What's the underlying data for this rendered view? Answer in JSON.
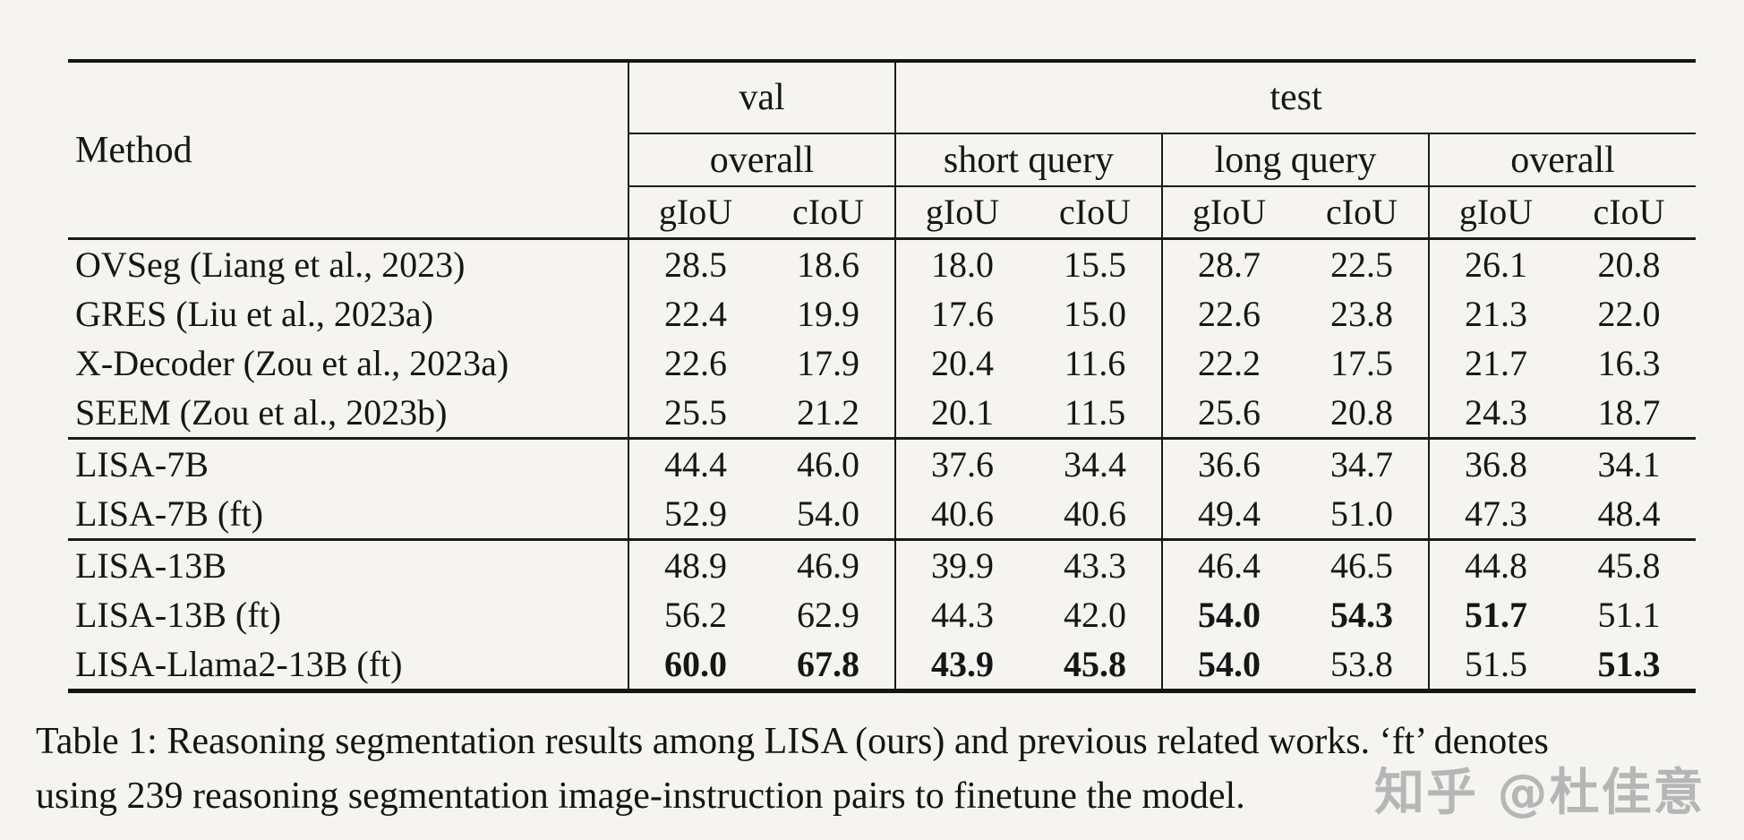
{
  "page": {
    "background": "#f5f4f1",
    "text_color": "#161616",
    "rule_color": "#1a1a1a"
  },
  "table": {
    "method_header": "Method",
    "top_groups": [
      {
        "label": "val"
      },
      {
        "label": "test"
      }
    ],
    "sub_groups": [
      "overall",
      "short query",
      "long query",
      "overall"
    ],
    "metric_headers": [
      "gIoU",
      "cIoU",
      "gIoU",
      "cIoU",
      "gIoU",
      "cIoU",
      "gIoU",
      "cIoU"
    ],
    "groups": [
      {
        "rows": [
          {
            "method": "OVSeg (Liang et al., 2023)",
            "values": [
              "28.5",
              "18.6",
              "18.0",
              "15.5",
              "28.7",
              "22.5",
              "26.1",
              "20.8"
            ],
            "bold": []
          },
          {
            "method": "GRES (Liu et al., 2023a)",
            "values": [
              "22.4",
              "19.9",
              "17.6",
              "15.0",
              "22.6",
              "23.8",
              "21.3",
              "22.0"
            ],
            "bold": []
          },
          {
            "method": "X-Decoder (Zou et al., 2023a)",
            "values": [
              "22.6",
              "17.9",
              "20.4",
              "11.6",
              "22.2",
              "17.5",
              "21.7",
              "16.3"
            ],
            "bold": []
          },
          {
            "method": "SEEM (Zou et al., 2023b)",
            "values": [
              "25.5",
              "21.2",
              "20.1",
              "11.5",
              "25.6",
              "20.8",
              "24.3",
              "18.7"
            ],
            "bold": []
          }
        ]
      },
      {
        "rows": [
          {
            "method": "LISA-7B",
            "values": [
              "44.4",
              "46.0",
              "37.6",
              "34.4",
              "36.6",
              "34.7",
              "36.8",
              "34.1"
            ],
            "bold": []
          },
          {
            "method": "LISA-7B (ft)",
            "values": [
              "52.9",
              "54.0",
              "40.6",
              "40.6",
              "49.4",
              "51.0",
              "47.3",
              "48.4"
            ],
            "bold": []
          }
        ]
      },
      {
        "rows": [
          {
            "method": "LISA-13B",
            "values": [
              "48.9",
              "46.9",
              "39.9",
              "43.3",
              "46.4",
              "46.5",
              "44.8",
              "45.8"
            ],
            "bold": []
          },
          {
            "method": "LISA-13B (ft)",
            "values": [
              "56.2",
              "62.9",
              "44.3",
              "42.0",
              "54.0",
              "54.3",
              "51.7",
              "51.1"
            ],
            "bold": [
              4,
              5,
              6
            ]
          },
          {
            "method": "LISA-Llama2-13B (ft)",
            "values": [
              "60.0",
              "67.8",
              "43.9",
              "45.8",
              "54.0",
              "53.8",
              "51.5",
              "51.3"
            ],
            "bold": [
              0,
              1,
              2,
              3,
              4,
              7
            ]
          }
        ]
      }
    ]
  },
  "caption": {
    "lines": [
      "Table 1: Reasoning segmentation results among LISA (ours) and previous related works. ‘ft’ denotes",
      "using 239 reasoning segmentation image-instruction pairs to finetune the model."
    ]
  },
  "watermark": {
    "text": "知乎 @杜佳意",
    "color": "#b6b6b6"
  }
}
